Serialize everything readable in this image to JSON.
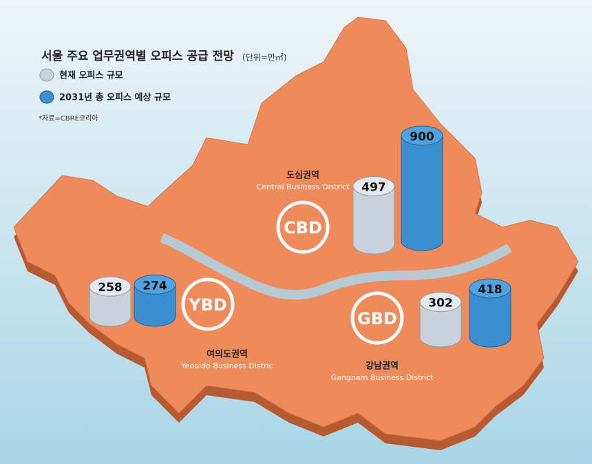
{
  "chart_data": {
    "type": "bar",
    "title": "서울 주요 업무권역별 오피스 공급 전망",
    "unit": "(단위=만㎡)",
    "source": "*자료=CBRE코리아",
    "categories": [
      "CBD",
      "YBD",
      "GBD"
    ],
    "category_names_ko": [
      "도심권역",
      "여의도권역",
      "강남권역"
    ],
    "category_names_en": [
      "Central Business District",
      "Yeouido Business Distric",
      "Gangnam Business District"
    ],
    "series": [
      {
        "name": "현재 오피스 규모",
        "color": "#c9d2da",
        "values": [
          497,
          258,
          302
        ]
      },
      {
        "name": "2031년 총 오피스 예상 규모",
        "color": "#3b8fd1",
        "values": [
          900,
          274,
          418
        ]
      }
    ]
  }
}
